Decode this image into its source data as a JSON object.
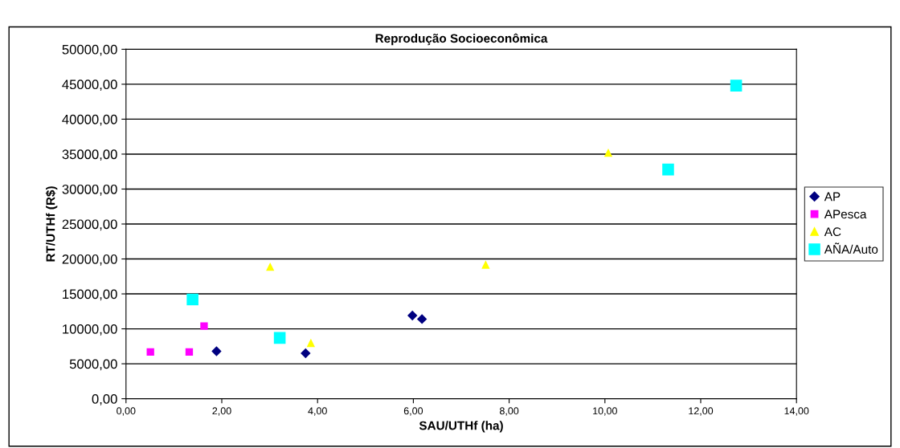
{
  "chart_data": {
    "type": "scatter",
    "title": "Reprodução Socioeconômica",
    "xlabel": "SAU/UTHf (ha)",
    "ylabel": "RT/UTHf (R$)",
    "xlim": [
      0,
      14
    ],
    "xticks": [
      {
        "value": 0,
        "label": "0,00"
      },
      {
        "value": 2,
        "label": "2,00"
      },
      {
        "value": 4,
        "label": "4,00"
      },
      {
        "value": 6,
        "label": "6,00"
      },
      {
        "value": 8,
        "label": "8,00"
      },
      {
        "value": 10,
        "label": "10,00"
      },
      {
        "value": 12,
        "label": "12,00"
      },
      {
        "value": 14,
        "label": "14,00"
      }
    ],
    "ylim": [
      0,
      50000
    ],
    "yticks": [
      {
        "value": 0,
        "label": "0,00"
      },
      {
        "value": 5000,
        "label": "5000,00"
      },
      {
        "value": 10000,
        "label": "10000,00"
      },
      {
        "value": 15000,
        "label": "15000,00"
      },
      {
        "value": 20000,
        "label": "20000,00"
      },
      {
        "value": 25000,
        "label": "25000,00"
      },
      {
        "value": 30000,
        "label": "30000,00"
      },
      {
        "value": 35000,
        "label": "35000,00"
      },
      {
        "value": 40000,
        "label": "40000,00"
      },
      {
        "value": 45000,
        "label": "45000,00"
      },
      {
        "value": 50000,
        "label": "50000,00"
      }
    ],
    "grid": "y",
    "legend": "right",
    "series": [
      {
        "name": "AP",
        "color": "#000080",
        "marker": "diamond",
        "x": [
          1.89,
          3.75,
          5.98,
          6.18
        ],
        "values": [
          6800,
          6500,
          11900,
          11400
        ]
      },
      {
        "name": "APesca",
        "color": "#ff00ff",
        "marker": "square",
        "x": [
          0.51,
          1.32,
          1.63
        ],
        "values": [
          6700,
          6700,
          10400
        ]
      },
      {
        "name": "AC",
        "color": "#ffff00",
        "marker": "triangle",
        "x": [
          3.01,
          3.86,
          7.51,
          10.07
        ],
        "values": [
          18900,
          8000,
          19200,
          35200
        ]
      },
      {
        "name": "AÑA/Auto",
        "color": "#00ffff",
        "marker": "square",
        "x": [
          1.39,
          3.21,
          11.32,
          12.74
        ],
        "values": [
          14200,
          8700,
          32800,
          44800
        ]
      }
    ]
  }
}
